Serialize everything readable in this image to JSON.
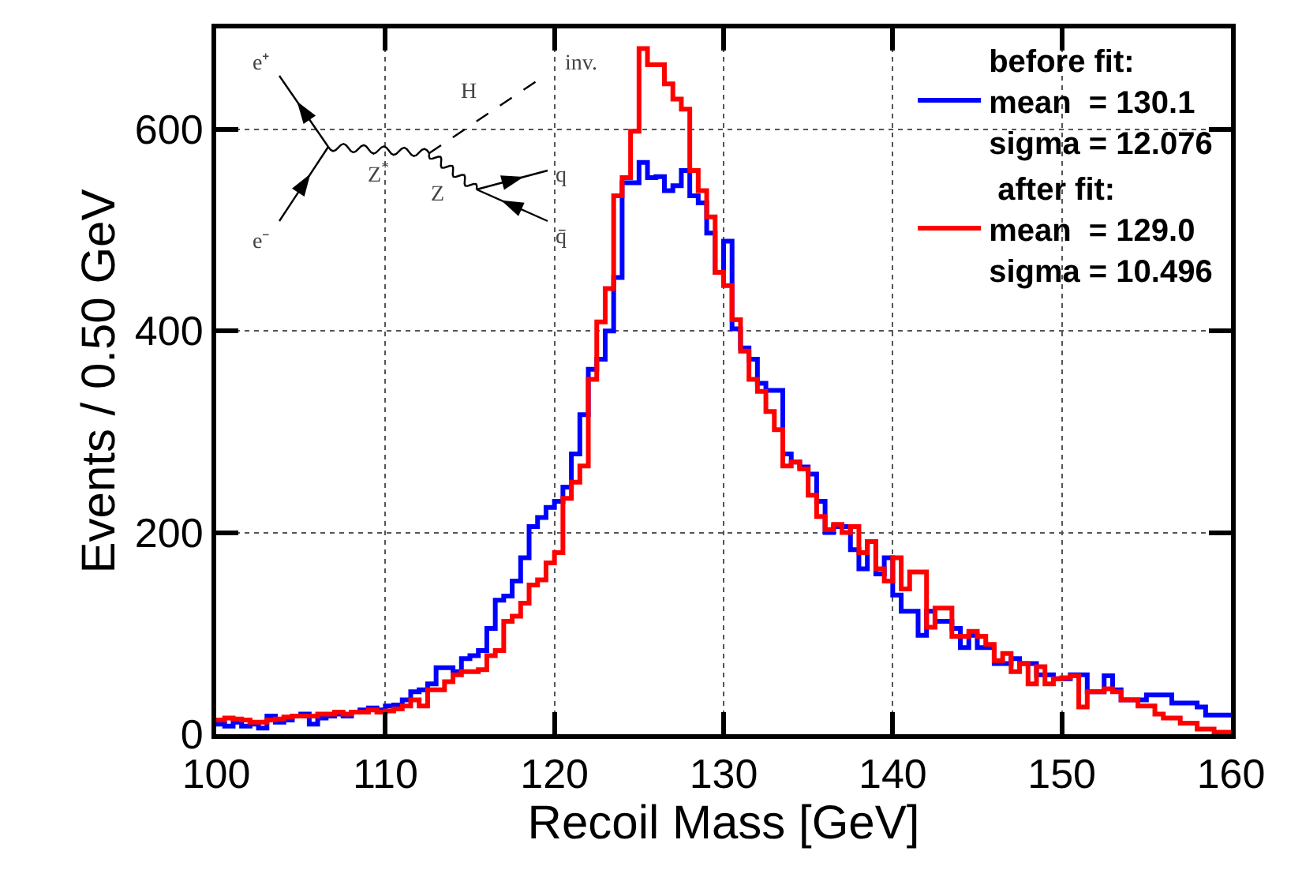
{
  "chart_data": {
    "type": "histogram",
    "xlabel": "Recoil Mass [GeV]",
    "ylabel": "Events / 0.50 GeV",
    "bins": [
      100,
      100.5,
      101,
      101.5,
      102,
      102.5,
      103,
      103.5,
      104,
      104.5,
      105,
      105.5,
      106,
      106.5,
      107,
      107.5,
      108,
      108.5,
      109,
      109.5,
      110,
      110.5,
      111,
      111.5,
      112,
      112.5,
      113,
      113.5,
      114,
      114.5,
      115,
      115.5,
      116,
      116.5,
      117,
      117.5,
      118,
      118.5,
      119,
      119.5,
      120,
      120.5,
      121,
      121.5,
      122,
      122.5,
      123,
      123.5,
      124,
      124.5,
      125,
      125.5,
      126,
      126.5,
      127,
      127.5,
      128,
      128.5,
      129,
      129.5,
      130,
      130.5,
      131,
      131.5,
      132,
      132.5,
      133,
      133.5,
      134,
      134.5,
      135,
      135.5,
      136,
      136.5,
      137,
      137.5,
      138,
      138.5,
      139,
      139.5,
      140,
      140.5,
      141,
      141.5,
      142,
      142.5,
      143,
      143.5,
      144,
      144.5,
      145,
      145.5,
      146,
      146.5,
      147,
      147.5,
      148,
      148.5,
      149,
      149.5,
      150,
      150.5,
      151,
      151.5,
      152,
      152.5,
      153,
      153.5,
      154,
      154.5,
      155,
      155.5,
      156,
      156.5,
      157,
      157.5,
      158,
      158.5,
      159,
      159.5,
      160
    ],
    "series": [
      {
        "name": "before fit:\nmean  = 130.1\nsigma = 12.076",
        "color": "#0000ff",
        "values": [
          10,
          8,
          12,
          8,
          10,
          6,
          18,
          12,
          14,
          18,
          20,
          10,
          16,
          18,
          20,
          18,
          22,
          24,
          26,
          24,
          28,
          29,
          34,
          42,
          44,
          50,
          66,
          66,
          62,
          75,
          78,
          83,
          105,
          133,
          137,
          152,
          175,
          206,
          215,
          225,
          231,
          245,
          278,
          317,
          362,
          372,
          400,
          453,
          547,
          547,
          567,
          552,
          553,
          539,
          544,
          559,
          534,
          527,
          497,
          458,
          489,
          402,
          383,
          372,
          348,
          341,
          341,
          278,
          270,
          265,
          258,
          231,
          200,
          206,
          206,
          183,
          164,
          191,
          159,
          175,
          138,
          122,
          122,
          98,
          122,
          112,
          112,
          105,
          86,
          98,
          86,
          86,
          70,
          70,
          75,
          70,
          70,
          59,
          59,
          55,
          55,
          59,
          59,
          42,
          42,
          58,
          44,
          34,
          34,
          34,
          39,
          39,
          39,
          31,
          31,
          31,
          27,
          19,
          19,
          19
        ]
      },
      {
        "name": " after fit:\nmean  = 129.0\nsigma = 10.496",
        "color": "#ff0000",
        "values": [
          14,
          16,
          15,
          14,
          12,
          12,
          14,
          15,
          17,
          18,
          18,
          18,
          20,
          20,
          22,
          20,
          22,
          22,
          24,
          22,
          23,
          25,
          28,
          34,
          28,
          44,
          44,
          52,
          59,
          62,
          62,
          64,
          78,
          83,
          112,
          117,
          130,
          148,
          153,
          170,
          180,
          234,
          250,
          266,
          352,
          409,
          442,
          534,
          552,
          598,
          680,
          664,
          664,
          645,
          630,
          620,
          559,
          539,
          513,
          458,
          445,
          411,
          380,
          352,
          340,
          320,
          302,
          266,
          270,
          263,
          237,
          216,
          203,
          208,
          200,
          206,
          180,
          191,
          164,
          152,
          175,
          144,
          161,
          161,
          106,
          125,
          125,
          97,
          97,
          102,
          97,
          89,
          73,
          80,
          62,
          70,
          50,
          67,
          50,
          55,
          56,
          58,
          27,
          42,
          42,
          45,
          42,
          34,
          34,
          28,
          28,
          20,
          16,
          16,
          11,
          11,
          5,
          5,
          2,
          2
        ]
      }
    ],
    "xlim": [
      100,
      160
    ],
    "xticks": [
      100,
      110,
      120,
      130,
      140,
      150,
      160
    ],
    "ylim": [
      0,
      700
    ],
    "yticks": [
      0,
      200,
      400,
      600
    ],
    "grid": true,
    "legend": "top right",
    "line_style": "solid",
    "annotations": [
      "e⁺",
      "e⁻",
      "Z$^{*}$",
      "Z",
      "H",
      "inv.",
      "q",
      "q̄"
    ]
  }
}
